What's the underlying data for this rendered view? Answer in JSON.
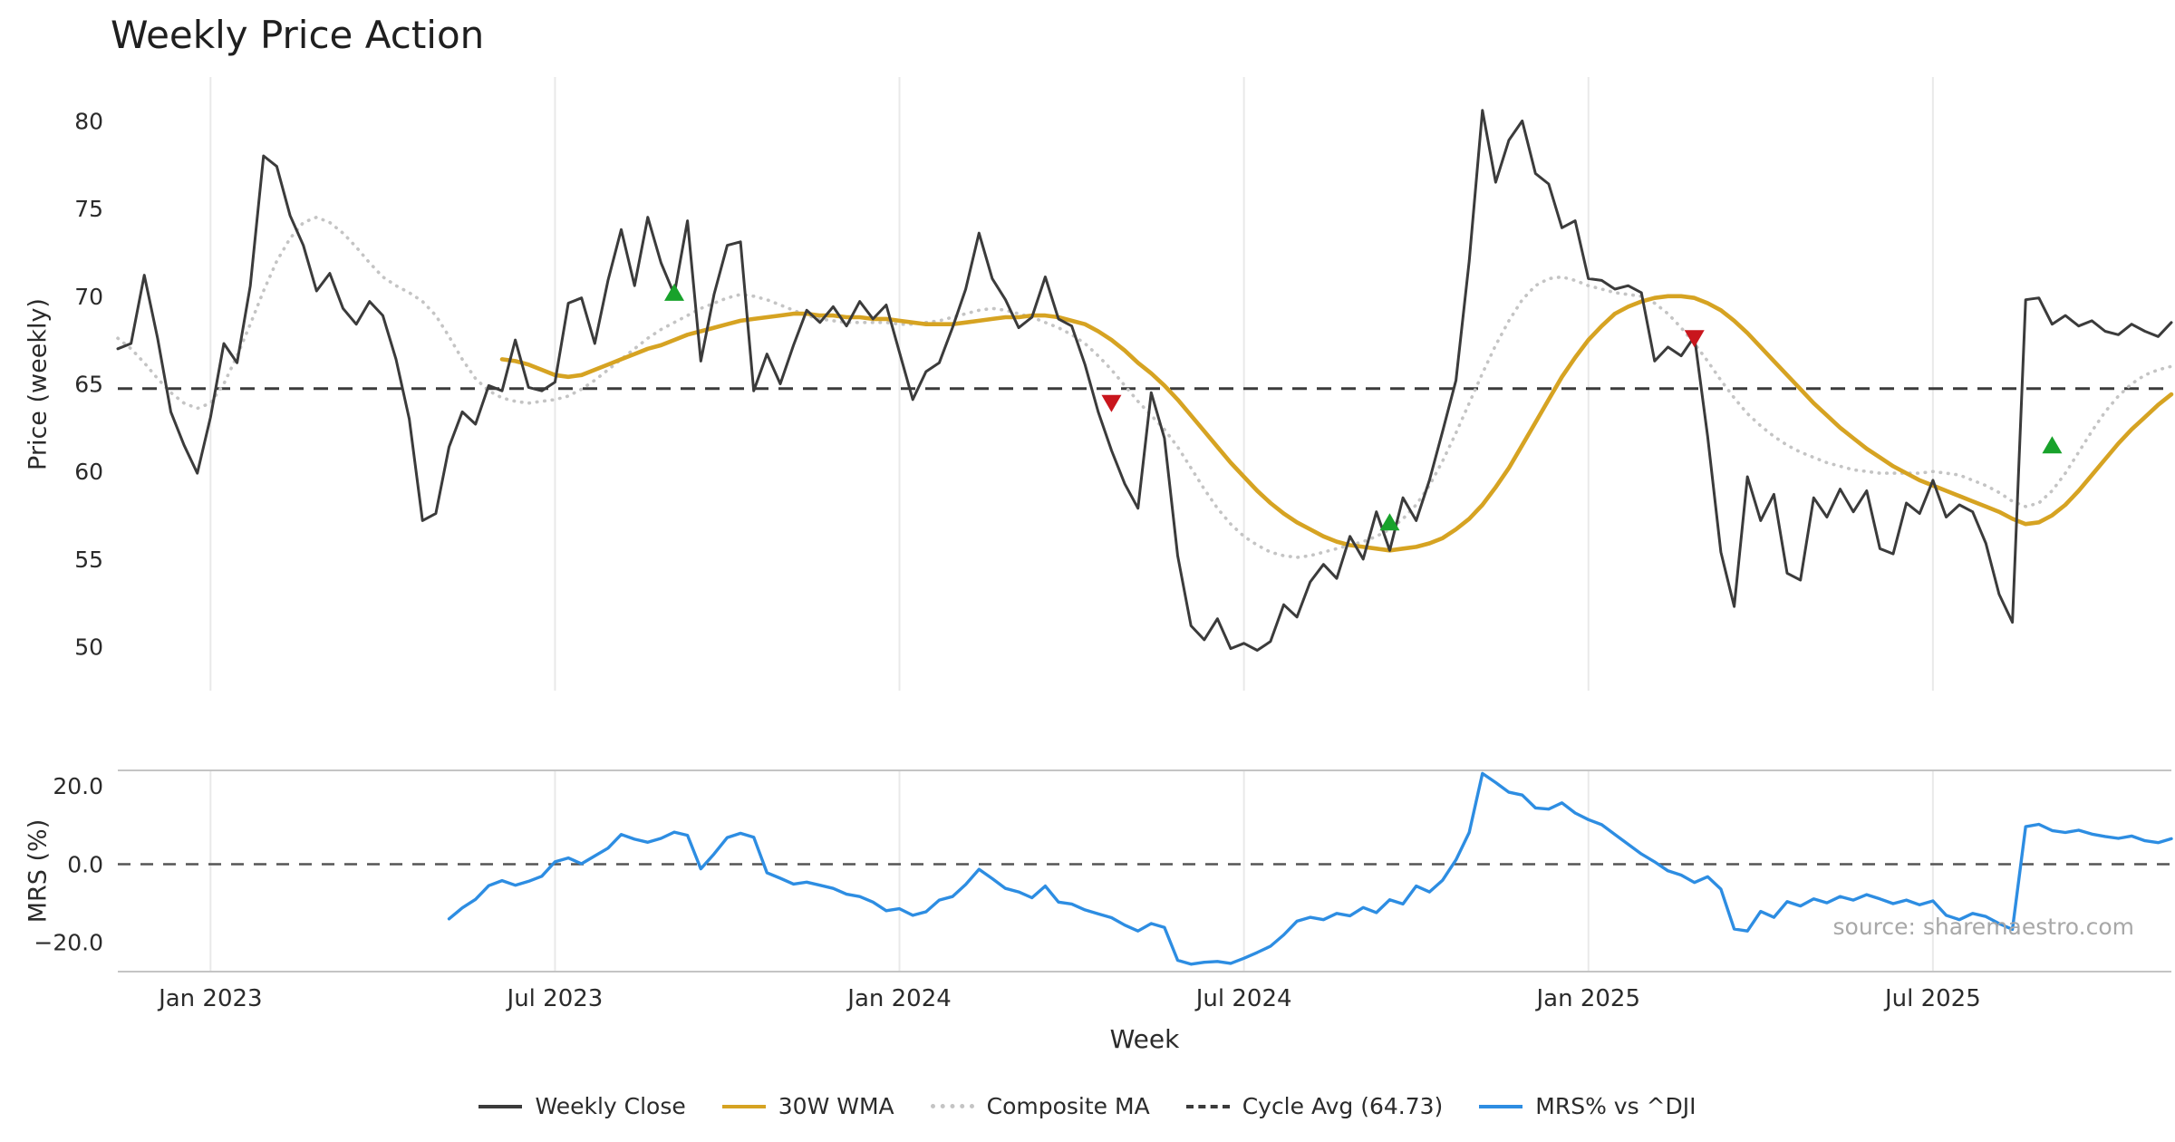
{
  "title": "Weekly Price Action",
  "source_note": "source: sharemaestro.com",
  "colors": {
    "close": "#3b3b3b",
    "wma": "#d6a322",
    "composite": "#c4c4c4",
    "cycle_avg": "#3b3b3b",
    "mrs": "#2d8de2",
    "buy": "#18a22b",
    "sell": "#c9161d",
    "grid": "#e9e9e9",
    "spine": "#c4c4c4",
    "zero_line": "#555555",
    "tick_text": "#2b2b2b"
  },
  "legend": [
    {
      "label": "Weekly Close",
      "color": "#3b3b3b",
      "style": "solid"
    },
    {
      "label": "30W WMA",
      "color": "#d6a322",
      "style": "solid"
    },
    {
      "label": "Composite MA",
      "color": "#c4c4c4",
      "style": "dotted"
    },
    {
      "label": "Cycle Avg (64.73)",
      "color": "#3b3b3b",
      "style": "dashed"
    },
    {
      "label": "MRS% vs ^DJI",
      "color": "#2d8de2",
      "style": "solid"
    }
  ],
  "chart_data": [
    {
      "type": "line",
      "panel": "price",
      "title": "Weekly Price Action",
      "ylabel": "Price (weekly)",
      "xlabel": "Week",
      "ylim": [
        47.5,
        82.5
      ],
      "yticks": [
        50,
        55,
        60,
        65,
        70,
        75,
        80
      ],
      "x_tick_labels": [
        "Jan 2023",
        "Jul 2023",
        "Jan 2024",
        "Jul 2024",
        "Jan 2025",
        "Jul 2025"
      ],
      "x_tick_weeks": [
        7,
        33,
        59,
        85,
        111,
        137
      ],
      "weeks_total": 156,
      "grid": "vertical-only",
      "cycle_avg": 64.73,
      "series": [
        {
          "name": "Weekly Close",
          "values": [
            67.0,
            67.3,
            71.2,
            67.6,
            63.4,
            61.5,
            59.9,
            63.1,
            67.3,
            66.2,
            70.6,
            78.0,
            77.4,
            74.6,
            72.9,
            70.3,
            71.3,
            69.3,
            68.4,
            69.7,
            68.9,
            66.4,
            63.0,
            57.2,
            57.6,
            61.4,
            63.4,
            62.7,
            64.9,
            64.6,
            67.5,
            64.8,
            64.6,
            65.1,
            69.6,
            69.9,
            67.3,
            70.9,
            73.8,
            70.6,
            74.5,
            71.9,
            70.1,
            74.3,
            66.3,
            70.1,
            72.9,
            73.1,
            64.6,
            66.7,
            65.0,
            67.2,
            69.2,
            68.5,
            69.4,
            68.3,
            69.7,
            68.7,
            69.5,
            66.8,
            64.1,
            65.7,
            66.2,
            68.2,
            70.4,
            73.6,
            71.0,
            69.8,
            68.2,
            68.8,
            71.1,
            68.7,
            68.3,
            66.1,
            63.4,
            61.2,
            59.3,
            57.9,
            64.5,
            61.9,
            55.2,
            51.2,
            50.4,
            51.6,
            49.9,
            50.2,
            49.8,
            50.3,
            52.4,
            51.7,
            53.7,
            54.7,
            53.9,
            56.3,
            55.0,
            57.7,
            55.5,
            58.5,
            57.2,
            59.5,
            62.3,
            65.2,
            72.0,
            80.6,
            76.5,
            78.9,
            80.0,
            77.0,
            76.4,
            73.9,
            74.3,
            71.0,
            70.9,
            70.4,
            70.6,
            70.2,
            66.3,
            67.1,
            66.6,
            67.7,
            62.0,
            55.4,
            52.3,
            59.7,
            57.2,
            58.7,
            54.2,
            53.8,
            58.5,
            57.4,
            59.0,
            57.7,
            58.9,
            55.6,
            55.3,
            58.2,
            57.6,
            59.5,
            57.4,
            58.1,
            57.7,
            55.9,
            53.0,
            51.4,
            69.8,
            69.9,
            68.4,
            68.9,
            68.3,
            68.6,
            68.0,
            67.8,
            68.4,
            68.0,
            67.7,
            68.5
          ]
        },
        {
          "name": "30W WMA",
          "values": [
            null,
            null,
            null,
            null,
            null,
            null,
            null,
            null,
            null,
            null,
            null,
            null,
            null,
            null,
            null,
            null,
            null,
            null,
            null,
            null,
            null,
            null,
            null,
            null,
            null,
            null,
            null,
            null,
            null,
            66.4,
            66.3,
            66.1,
            65.8,
            65.5,
            65.4,
            65.5,
            65.8,
            66.1,
            66.4,
            66.7,
            67.0,
            67.2,
            67.5,
            67.8,
            68.0,
            68.2,
            68.4,
            68.6,
            68.7,
            68.8,
            68.9,
            69.0,
            69.0,
            68.9,
            68.9,
            68.8,
            68.8,
            68.7,
            68.7,
            68.6,
            68.5,
            68.4,
            68.4,
            68.4,
            68.5,
            68.6,
            68.7,
            68.8,
            68.8,
            68.9,
            68.9,
            68.8,
            68.6,
            68.4,
            68.0,
            67.5,
            66.9,
            66.2,
            65.6,
            64.9,
            64.1,
            63.2,
            62.3,
            61.4,
            60.5,
            59.7,
            58.9,
            58.2,
            57.6,
            57.1,
            56.7,
            56.3,
            56.0,
            55.8,
            55.7,
            55.6,
            55.5,
            55.6,
            55.7,
            55.9,
            56.2,
            56.7,
            57.3,
            58.1,
            59.1,
            60.2,
            61.5,
            62.8,
            64.1,
            65.4,
            66.5,
            67.5,
            68.3,
            69.0,
            69.4,
            69.7,
            69.9,
            70.0,
            70.0,
            69.9,
            69.6,
            69.2,
            68.6,
            67.9,
            67.1,
            66.3,
            65.5,
            64.7,
            63.9,
            63.2,
            62.5,
            61.9,
            61.3,
            60.8,
            60.3,
            59.9,
            59.5,
            59.2,
            58.9,
            58.6,
            58.3,
            58.0,
            57.7,
            57.3,
            57.0,
            57.1,
            57.5,
            58.1,
            58.9,
            59.8,
            60.7,
            61.6,
            62.4,
            63.1,
            63.8,
            64.4
          ]
        },
        {
          "name": "Composite MA",
          "values": [
            67.6,
            67.0,
            66.2,
            65.3,
            64.5,
            63.9,
            63.6,
            63.9,
            65.0,
            66.6,
            68.4,
            70.3,
            72.0,
            73.3,
            74.2,
            74.5,
            74.2,
            73.6,
            72.8,
            71.9,
            71.1,
            70.6,
            70.2,
            69.7,
            68.9,
            67.7,
            66.4,
            65.3,
            64.6,
            64.2,
            64.0,
            63.9,
            64.0,
            64.1,
            64.3,
            64.7,
            65.2,
            65.8,
            66.4,
            67.0,
            67.6,
            68.1,
            68.5,
            68.9,
            69.3,
            69.6,
            69.9,
            70.1,
            70.0,
            69.8,
            69.5,
            69.2,
            68.9,
            68.7,
            68.6,
            68.5,
            68.5,
            68.5,
            68.5,
            68.4,
            68.4,
            68.5,
            68.6,
            68.8,
            69.0,
            69.2,
            69.3,
            69.2,
            69.0,
            68.8,
            68.5,
            68.2,
            67.8,
            67.3,
            66.6,
            65.8,
            64.9,
            64.0,
            63.2,
            62.4,
            61.4,
            60.2,
            59.0,
            57.9,
            57.0,
            56.3,
            55.8,
            55.4,
            55.2,
            55.1,
            55.2,
            55.4,
            55.6,
            55.8,
            56.0,
            56.3,
            56.7,
            57.3,
            58.1,
            59.2,
            60.6,
            62.2,
            63.9,
            65.6,
            67.2,
            68.6,
            69.8,
            70.6,
            71.0,
            71.1,
            70.9,
            70.6,
            70.4,
            70.2,
            70.1,
            70.0,
            69.6,
            69.0,
            68.2,
            67.3,
            66.3,
            65.2,
            64.2,
            63.3,
            62.6,
            62.0,
            61.5,
            61.1,
            60.8,
            60.5,
            60.3,
            60.1,
            60.0,
            59.9,
            59.9,
            59.9,
            59.9,
            60.0,
            59.9,
            59.8,
            59.5,
            59.2,
            58.8,
            58.3,
            58.0,
            58.2,
            58.9,
            59.9,
            61.1,
            62.3,
            63.4,
            64.3,
            65.0,
            65.5,
            65.8,
            66.0
          ]
        }
      ],
      "signals": {
        "buy": [
          {
            "week": 42,
            "price": 70.2
          },
          {
            "week": 96,
            "price": 57.1
          },
          {
            "week": 146,
            "price": 61.5
          }
        ],
        "sell": [
          {
            "week": 75,
            "price": 63.9
          },
          {
            "week": 119,
            "price": 67.6
          }
        ]
      }
    },
    {
      "type": "line",
      "panel": "mrs",
      "ylabel": "MRS (%)",
      "ylim": [
        -27.5,
        24
      ],
      "yticks": [
        20,
        0,
        -20
      ],
      "ytick_labels": [
        "20.0",
        "0.0",
        "−20.0"
      ],
      "zero_line": 0,
      "series": [
        {
          "name": "MRS% vs ^DJI",
          "values": [
            null,
            null,
            null,
            null,
            null,
            null,
            null,
            null,
            null,
            null,
            null,
            null,
            null,
            null,
            null,
            null,
            null,
            null,
            null,
            null,
            null,
            null,
            null,
            null,
            null,
            -14.0,
            -11.2,
            -9.0,
            -5.5,
            -4.2,
            -5.4,
            -4.4,
            -3.1,
            0.6,
            1.6,
            0.1,
            2.1,
            4.1,
            7.6,
            6.4,
            5.6,
            6.6,
            8.2,
            7.4,
            -1.2,
            2.6,
            6.8,
            7.9,
            6.9,
            -2.2,
            -3.6,
            -5.1,
            -4.6,
            -5.4,
            -6.2,
            -7.7,
            -8.3,
            -9.7,
            -11.9,
            -11.4,
            -13.1,
            -12.2,
            -9.2,
            -8.3,
            -5.2,
            -1.3,
            -3.7,
            -6.2,
            -7.1,
            -8.6,
            -5.6,
            -9.7,
            -10.2,
            -11.7,
            -12.7,
            -13.7,
            -15.6,
            -17.1,
            -15.2,
            -16.2,
            -24.6,
            -25.6,
            -25.1,
            -24.9,
            -25.4,
            -24.1,
            -22.6,
            -21.0,
            -18.1,
            -14.6,
            -13.6,
            -14.2,
            -12.6,
            -13.2,
            -11.1,
            -12.4,
            -9.1,
            -10.2,
            -5.6,
            -7.1,
            -4.1,
            1.1,
            8.1,
            23.2,
            20.9,
            18.4,
            17.7,
            14.4,
            14.1,
            15.7,
            13.1,
            11.4,
            10.1,
            7.6,
            5.1,
            2.6,
            0.6,
            -1.7,
            -2.8,
            -4.7,
            -3.2,
            -6.4,
            -16.6,
            -17.1,
            -12.1,
            -13.6,
            -9.6,
            -10.7,
            -8.9,
            -9.9,
            -8.3,
            -9.2,
            -7.8,
            -8.9,
            -10.1,
            -9.2,
            -10.4,
            -9.4,
            -13.1,
            -14.2,
            -12.6,
            -13.4,
            -15.2,
            -16.7,
            9.6,
            10.2,
            8.6,
            8.1,
            8.7,
            7.7,
            7.1,
            6.6,
            7.2,
            6.0,
            5.5,
            6.5
          ]
        }
      ]
    }
  ]
}
